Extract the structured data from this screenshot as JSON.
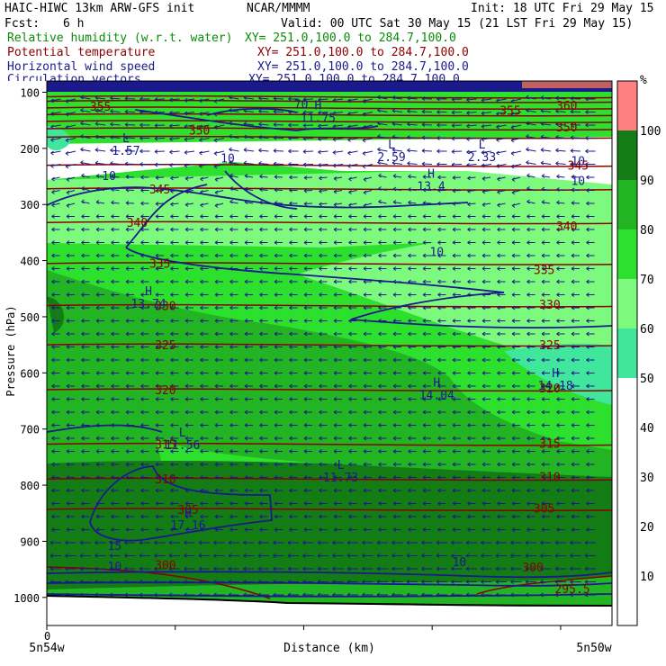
{
  "header": {
    "model_title": "HAIC-HIWC 13km ARW-GFS init",
    "org": "NCAR/MMMM",
    "init": "Init: 18 UTC Fri 29 May 15",
    "fcst_label": "Fcst:",
    "fcst_value": "6 h",
    "valid": "Valid: 00 UTC Sat 30 May 15 (21 LST Fri 29 May 15)"
  },
  "fields": [
    {
      "name": "Relative humidity (w.r.t. water)",
      "xy": "XY= 251.0,100.0 to 284.7,100.0",
      "color": "#0a8a0a"
    },
    {
      "name": "Potential temperature",
      "xy": "XY= 251.0,100.0 to 284.7,100.0",
      "color": "#8b0000"
    },
    {
      "name": "Horizontal wind speed",
      "xy": "XY= 251.0,100.0 to 284.7,100.0",
      "color": "#1a1a8c"
    },
    {
      "name": "Circulation vectors",
      "xy": "XY= 251.0,100.0 to 284.7,100.0",
      "color": "#1a1a8c"
    }
  ],
  "chart_data": {
    "type": "heatmap",
    "ylabel": "Pressure (hPa)",
    "xlabel": "Distance (km)",
    "x_start_label": "5n54w",
    "x_end_label": "5n50w",
    "x_zero_label": "0",
    "y_ticks": [
      100,
      200,
      300,
      400,
      500,
      600,
      700,
      800,
      900,
      1000
    ],
    "colorbar": {
      "unit": "%",
      "ticks": [
        10,
        20,
        30,
        40,
        50,
        60,
        70,
        80,
        90,
        100
      ],
      "levels": [
        {
          "from": 50,
          "to": 60,
          "color": "#3fe69c"
        },
        {
          "from": 60,
          "to": 70,
          "color": "#7dfa7d"
        },
        {
          "from": 70,
          "to": 80,
          "color": "#2ee02e"
        },
        {
          "from": 80,
          "to": 90,
          "color": "#22b422"
        },
        {
          "from": 90,
          "to": 100,
          "color": "#147c14"
        },
        {
          "from": 100,
          "to": 110,
          "color": "#ff8080"
        }
      ]
    },
    "theta_labels": [
      {
        "v": "355",
        "x": 0.095,
        "p": 125
      },
      {
        "v": "360",
        "x": 0.92,
        "p": 123
      },
      {
        "v": "355",
        "x": 0.82,
        "p": 132
      },
      {
        "v": "350",
        "x": 0.27,
        "p": 167
      },
      {
        "v": "350",
        "x": 0.92,
        "p": 162
      },
      {
        "v": "345",
        "x": 0.2,
        "p": 272
      },
      {
        "v": "345",
        "x": 0.94,
        "p": 230
      },
      {
        "v": "340",
        "x": 0.16,
        "p": 332
      },
      {
        "v": "340",
        "x": 0.92,
        "p": 338
      },
      {
        "v": "335",
        "x": 0.2,
        "p": 405
      },
      {
        "v": "335",
        "x": 0.88,
        "p": 416
      },
      {
        "v": "330",
        "x": 0.21,
        "p": 480
      },
      {
        "v": "330",
        "x": 0.89,
        "p": 478
      },
      {
        "v": "325",
        "x": 0.21,
        "p": 550
      },
      {
        "v": "325",
        "x": 0.89,
        "p": 550
      },
      {
        "v": "320",
        "x": 0.21,
        "p": 630
      },
      {
        "v": "320",
        "x": 0.89,
        "p": 627
      },
      {
        "v": "315",
        "x": 0.21,
        "p": 727
      },
      {
        "v": "315",
        "x": 0.89,
        "p": 725
      },
      {
        "v": "310",
        "x": 0.21,
        "p": 789
      },
      {
        "v": "310",
        "x": 0.89,
        "p": 785
      },
      {
        "v": "305",
        "x": 0.25,
        "p": 843
      },
      {
        "v": "305",
        "x": 0.88,
        "p": 841
      },
      {
        "v": "300",
        "x": 0.21,
        "p": 942
      },
      {
        "v": "300",
        "x": 0.86,
        "p": 946
      },
      {
        "v": "295.5",
        "x": 0.93,
        "p": 984
      }
    ],
    "wind_labels": [
      {
        "v": "10",
        "x": 0.11,
        "p": 248
      },
      {
        "v": "10",
        "x": 0.32,
        "p": 217
      },
      {
        "v": "10",
        "x": 0.94,
        "p": 222
      },
      {
        "v": "10",
        "x": 0.94,
        "p": 257
      },
      {
        "v": "10",
        "x": 0.69,
        "p": 384
      },
      {
        "v": "15",
        "x": 0.12,
        "p": 907
      },
      {
        "v": "10",
        "x": 0.12,
        "p": 944
      },
      {
        "v": "10",
        "x": 0.73,
        "p": 936
      },
      {
        "v": "70",
        "x": 0.45,
        "p": 121
      }
    ],
    "extrema": [
      {
        "kind": "H",
        "value": "17.16",
        "x": 0.25,
        "p": 866
      },
      {
        "kind": "H",
        "value": "13.74",
        "x": 0.18,
        "p": 471
      },
      {
        "kind": "H",
        "value": "14.04",
        "x": 0.69,
        "p": 634
      },
      {
        "kind": "H",
        "value": "14.18",
        "x": 0.9,
        "p": 617
      },
      {
        "kind": "H",
        "value": "13.4",
        "x": 0.68,
        "p": 262
      },
      {
        "kind": "L",
        "value": "11.56",
        "x": 0.24,
        "p": 723
      },
      {
        "kind": "L",
        "value": "11.73",
        "x": 0.52,
        "p": 781
      },
      {
        "kind": "L",
        "value": "2.59",
        "x": 0.61,
        "p": 210
      },
      {
        "kind": "L",
        "value": "2.33",
        "x": 0.77,
        "p": 210
      },
      {
        "kind": "L",
        "value": "1.57",
        "x": 0.14,
        "p": 199
      },
      {
        "kind": "H",
        "value": "11.75",
        "x": 0.48,
        "p": 140
      }
    ]
  }
}
